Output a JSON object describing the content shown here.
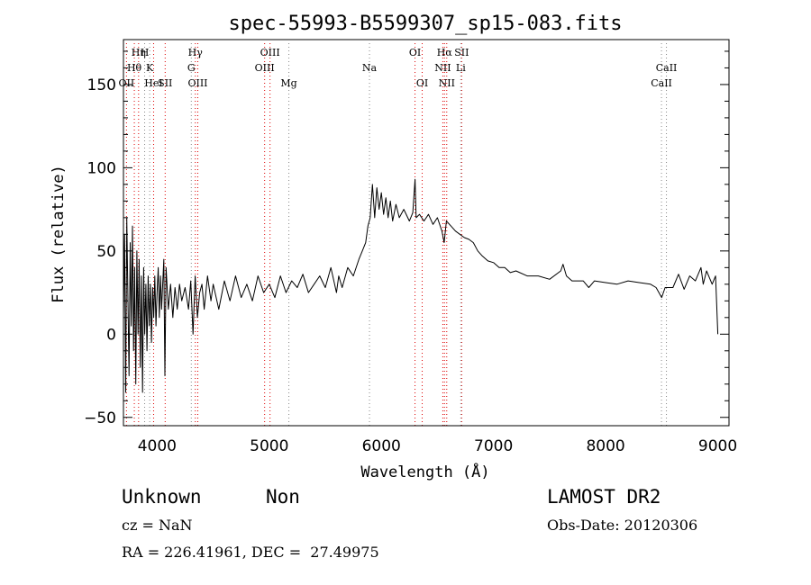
{
  "chart_data": {
    "type": "line",
    "title": "spec-55993-B5599307_sp15-083.fits",
    "xlabel": "Wavelength (Å)",
    "ylabel": "Flux (relative)",
    "xlim": [
      3700,
      9100
    ],
    "ylim": [
      -55,
      177
    ],
    "xticks": [
      4000,
      5000,
      6000,
      7000,
      8000,
      9000
    ],
    "yticks": [
      -50,
      0,
      50,
      100,
      150
    ],
    "grid": false,
    "series": [
      {
        "values": [
          [
            3700,
            10
          ],
          [
            3710,
            60
          ],
          [
            3720,
            -35
          ],
          [
            3730,
            70
          ],
          [
            3740,
            20
          ],
          [
            3750,
            -25
          ],
          [
            3760,
            55
          ],
          [
            3770,
            5
          ],
          [
            3780,
            65
          ],
          [
            3790,
            -10
          ],
          [
            3800,
            40
          ],
          [
            3810,
            -30
          ],
          [
            3820,
            50
          ],
          [
            3830,
            0
          ],
          [
            3840,
            45
          ],
          [
            3850,
            -20
          ],
          [
            3860,
            35
          ],
          [
            3870,
            -35
          ],
          [
            3880,
            40
          ],
          [
            3890,
            0
          ],
          [
            3900,
            30
          ],
          [
            3910,
            -10
          ],
          [
            3920,
            35
          ],
          [
            3930,
            5
          ],
          [
            3940,
            30
          ],
          [
            3950,
            -5
          ],
          [
            3960,
            28
          ],
          [
            3970,
            10
          ],
          [
            3980,
            35
          ],
          [
            3990,
            5
          ],
          [
            4000,
            25
          ],
          [
            4010,
            40
          ],
          [
            4020,
            10
          ],
          [
            4030,
            35
          ],
          [
            4040,
            15
          ],
          [
            4060,
            45
          ],
          [
            4070,
            -25
          ],
          [
            4080,
            40
          ],
          [
            4100,
            15
          ],
          [
            4120,
            30
          ],
          [
            4140,
            10
          ],
          [
            4160,
            28
          ],
          [
            4180,
            15
          ],
          [
            4200,
            30
          ],
          [
            4220,
            20
          ],
          [
            4250,
            28
          ],
          [
            4280,
            15
          ],
          [
            4300,
            32
          ],
          [
            4320,
            0
          ],
          [
            4340,
            35
          ],
          [
            4360,
            10
          ],
          [
            4380,
            25
          ],
          [
            4400,
            30
          ],
          [
            4420,
            15
          ],
          [
            4450,
            35
          ],
          [
            4480,
            20
          ],
          [
            4500,
            30
          ],
          [
            4550,
            15
          ],
          [
            4600,
            32
          ],
          [
            4650,
            20
          ],
          [
            4700,
            35
          ],
          [
            4750,
            22
          ],
          [
            4800,
            30
          ],
          [
            4850,
            20
          ],
          [
            4900,
            35
          ],
          [
            4950,
            25
          ],
          [
            5000,
            30
          ],
          [
            5050,
            22
          ],
          [
            5100,
            35
          ],
          [
            5150,
            25
          ],
          [
            5200,
            32
          ],
          [
            5250,
            28
          ],
          [
            5300,
            36
          ],
          [
            5350,
            25
          ],
          [
            5400,
            30
          ],
          [
            5450,
            35
          ],
          [
            5500,
            28
          ],
          [
            5550,
            40
          ],
          [
            5600,
            25
          ],
          [
            5620,
            35
          ],
          [
            5650,
            28
          ],
          [
            5700,
            40
          ],
          [
            5750,
            35
          ],
          [
            5800,
            45
          ],
          [
            5830,
            50
          ],
          [
            5860,
            55
          ],
          [
            5880,
            65
          ],
          [
            5900,
            70
          ],
          [
            5920,
            90
          ],
          [
            5940,
            70
          ],
          [
            5960,
            88
          ],
          [
            5980,
            75
          ],
          [
            6000,
            85
          ],
          [
            6020,
            72
          ],
          [
            6040,
            82
          ],
          [
            6060,
            70
          ],
          [
            6080,
            80
          ],
          [
            6100,
            68
          ],
          [
            6130,
            78
          ],
          [
            6160,
            70
          ],
          [
            6200,
            75
          ],
          [
            6250,
            68
          ],
          [
            6280,
            73
          ],
          [
            6300,
            93
          ],
          [
            6310,
            70
          ],
          [
            6340,
            72
          ],
          [
            6380,
            68
          ],
          [
            6420,
            72
          ],
          [
            6460,
            66
          ],
          [
            6500,
            70
          ],
          [
            6540,
            62
          ],
          [
            6560,
            55
          ],
          [
            6580,
            68
          ],
          [
            6620,
            65
          ],
          [
            6660,
            62
          ],
          [
            6700,
            60
          ],
          [
            6740,
            58
          ],
          [
            6780,
            57
          ],
          [
            6820,
            55
          ],
          [
            6860,
            50
          ],
          [
            6900,
            47
          ],
          [
            6950,
            44
          ],
          [
            7000,
            43
          ],
          [
            7050,
            40
          ],
          [
            7100,
            40
          ],
          [
            7150,
            37
          ],
          [
            7200,
            38
          ],
          [
            7300,
            35
          ],
          [
            7400,
            35
          ],
          [
            7500,
            33
          ],
          [
            7600,
            38
          ],
          [
            7620,
            42
          ],
          [
            7650,
            35
          ],
          [
            7700,
            32
          ],
          [
            7800,
            32
          ],
          [
            7850,
            28
          ],
          [
            7900,
            32
          ],
          [
            8000,
            31
          ],
          [
            8100,
            30
          ],
          [
            8200,
            32
          ],
          [
            8300,
            31
          ],
          [
            8400,
            30
          ],
          [
            8450,
            28
          ],
          [
            8500,
            22
          ],
          [
            8530,
            28
          ],
          [
            8600,
            28
          ],
          [
            8650,
            36
          ],
          [
            8700,
            27
          ],
          [
            8750,
            35
          ],
          [
            8800,
            32
          ],
          [
            8850,
            40
          ],
          [
            8870,
            30
          ],
          [
            8900,
            38
          ],
          [
            8950,
            30
          ],
          [
            8980,
            35
          ],
          [
            9000,
            0
          ]
        ]
      }
    ],
    "lines": [
      {
        "label": "Hη",
        "x": 3835,
        "row": 0,
        "color": "#dd0000"
      },
      {
        "label": "Hθ",
        "x": 3797,
        "row": 1,
        "color": "#dd0000"
      },
      {
        "label": "OII",
        "x": 3727,
        "row": 2,
        "color": "#dd0000"
      },
      {
        "label": "H",
        "x": 3889,
        "row": 0,
        "color": "#888888"
      },
      {
        "label": "K",
        "x": 3934,
        "row": 1,
        "color": "#888888"
      },
      {
        "label": "HeI",
        "x": 3969,
        "row": 2,
        "color": "#dd0000"
      },
      {
        "label": "SII",
        "x": 4072,
        "row": 2,
        "color": "#dd0000"
      },
      {
        "label": "Hγ",
        "x": 4341,
        "row": 0,
        "color": "#dd0000"
      },
      {
        "label": "G",
        "x": 4305,
        "row": 1,
        "color": "#888888"
      },
      {
        "label": "OIII",
        "x": 4363,
        "row": 2,
        "color": "#dd0000"
      },
      {
        "label": "OIII",
        "x": 5007,
        "row": 0,
        "color": "#dd0000"
      },
      {
        "label": "OIII",
        "x": 4959,
        "row": 1,
        "color": "#dd0000"
      },
      {
        "label": "Mg",
        "x": 5175,
        "row": 2,
        "color": "#888888"
      },
      {
        "label": "Na",
        "x": 5894,
        "row": 1,
        "color": "#888888"
      },
      {
        "label": "OI",
        "x": 6300,
        "row": 0,
        "color": "#dd0000"
      },
      {
        "label": "OI",
        "x": 6364,
        "row": 2,
        "color": "#dd0000"
      },
      {
        "label": "Hα",
        "x": 6563,
        "row": 0,
        "color": "#dd0000"
      },
      {
        "label": "SII",
        "x": 6716,
        "row": 0,
        "color": "#dd0000"
      },
      {
        "label": "NII",
        "x": 6548,
        "row": 1,
        "color": "#dd0000"
      },
      {
        "label": "NII",
        "x": 6583,
        "row": 2,
        "color": "#dd0000"
      },
      {
        "label": "Li",
        "x": 6708,
        "row": 1,
        "color": "#888888"
      },
      {
        "label": "CaII",
        "x": 8542,
        "row": 1,
        "color": "#888888"
      },
      {
        "label": "CaII",
        "x": 8498,
        "row": 2,
        "color": "#888888"
      }
    ]
  },
  "info": {
    "class_label": "Unknown",
    "subclass_label": "Non",
    "survey": "LAMOST DR2",
    "redshift": "cz = NaN",
    "obs_date": "Obs-Date: 20120306",
    "coords": "RA = 226.41961, DEC =  27.49975"
  }
}
